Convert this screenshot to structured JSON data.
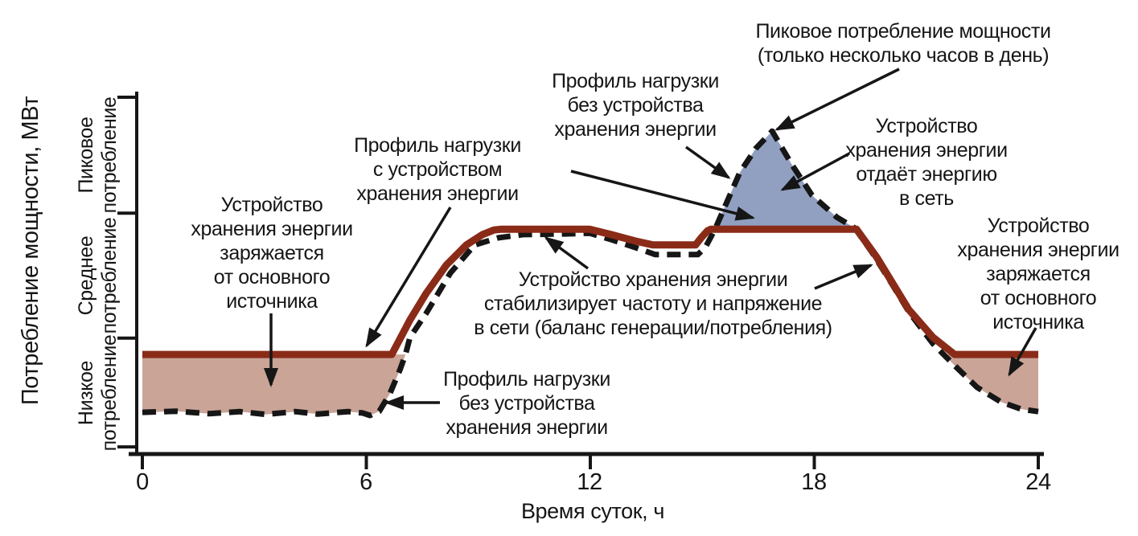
{
  "x_axis": {
    "label": "Время суток, ч",
    "tick_labels": [
      "0",
      "6",
      "12",
      "18",
      "24"
    ]
  },
  "y_axis": {
    "label": "Потребление мощности, МВт",
    "zones": [
      "Пиковое\nпотребление",
      "Среднее\nпотребление",
      "Низкое\nпотребление"
    ]
  },
  "annotations": {
    "peak_demand": "Пиковое потребление мощности\n(только несколько часов в день)",
    "profile_without_top": "Профиль нагрузки\nбез устройства\nхранения энергии",
    "discharge": "Устройство\nхранения энергии\nотдаёт энергию\nв сеть",
    "profile_with": "Профиль нагрузки\nс устройством\nхранения энергии",
    "charge_left": "Устройство\nхранения энергии\nзаряжается\nот основного\nисточника",
    "stabilize": "Устройство хранения энергии\nстабилизирует частоту и напряжение\nв сети (баланс генерации/потребления)",
    "charge_right": "Устройство\nхранения энергии\nзаряжается\nот основного\nисточника",
    "profile_without_bottom": "Профиль нагрузки\nбез устройства\nхранения энергии"
  },
  "chart_data": {
    "type": "line",
    "xlabel": "Время суток, ч",
    "ylabel": "Потребление мощности, МВт",
    "xlim": [
      0,
      24
    ],
    "ylim": [
      0,
      100
    ],
    "x_ticks": [
      0,
      6,
      12,
      18,
      24
    ],
    "y_ticks": [
      100,
      67.5,
      32.5,
      2
    ],
    "zone_bands": [
      {
        "name": "Пиковое потребление",
        "from": 67.5,
        "to": 100
      },
      {
        "name": "Среднее потребление",
        "from": 32.5,
        "to": 67.5
      },
      {
        "name": "Низкое потребление",
        "from": 2,
        "to": 32.5
      }
    ],
    "series": [
      {
        "id": "without",
        "name": "Профиль нагрузки без устройства хранения энергии",
        "style": "dashed-black",
        "points": [
          [
            0,
            11.7
          ],
          [
            0.9,
            12.0
          ],
          [
            1.8,
            11.3
          ],
          [
            2.6,
            11.9
          ],
          [
            3.3,
            11.1
          ],
          [
            4.1,
            11.9
          ],
          [
            4.7,
            11.2
          ],
          [
            5.5,
            11.9
          ],
          [
            5.9,
            11.5
          ],
          [
            6.1,
            10.8
          ],
          [
            6.35,
            12.0
          ],
          [
            6.63,
            16.9
          ],
          [
            6.9,
            23.6
          ],
          [
            7.05,
            27.9
          ],
          [
            7.17,
            32.7
          ],
          [
            7.6,
            39.4
          ],
          [
            8.25,
            50.7
          ],
          [
            8.9,
            58.6
          ],
          [
            9.54,
            60.6
          ],
          [
            10.2,
            61.5
          ],
          [
            11.3,
            61.7
          ],
          [
            11.98,
            61.9
          ],
          [
            12.56,
            60.1
          ],
          [
            13.2,
            57.9
          ],
          [
            13.74,
            55.9
          ],
          [
            14.88,
            55.9
          ],
          [
            15.08,
            57.9
          ],
          [
            15.23,
            60.8
          ],
          [
            15.36,
            63.5
          ],
          [
            16.0,
            78.8
          ],
          [
            16.43,
            85.6
          ],
          [
            16.87,
            90.5
          ],
          [
            17.4,
            81.1
          ],
          [
            17.94,
            72.5
          ],
          [
            18.6,
            66.4
          ],
          [
            19.09,
            63.3
          ],
          [
            19.56,
            56.3
          ],
          [
            20.1,
            47.3
          ],
          [
            20.53,
            39.9
          ],
          [
            21.18,
            30.9
          ],
          [
            21.76,
            24.8
          ],
          [
            22.36,
            18.7
          ],
          [
            23.0,
            14.6
          ],
          [
            23.54,
            12.6
          ],
          [
            24,
            11.9
          ]
        ]
      },
      {
        "id": "with",
        "name": "Профиль нагрузки с устройством хранения энергии",
        "style": "solid-dark-red",
        "points": [
          [
            0,
            27.9
          ],
          [
            6.68,
            27.9
          ],
          [
            7.17,
            37.6
          ],
          [
            7.6,
            45.0
          ],
          [
            8.14,
            52.9
          ],
          [
            8.68,
            58.6
          ],
          [
            9.11,
            61.5
          ],
          [
            9.42,
            62.8
          ],
          [
            9.6,
            63.0
          ],
          [
            11.98,
            63.0
          ],
          [
            12.56,
            61.5
          ],
          [
            13.2,
            59.7
          ],
          [
            13.68,
            58.6
          ],
          [
            14.82,
            58.6
          ],
          [
            14.97,
            60.6
          ],
          [
            15.14,
            62.6
          ],
          [
            15.23,
            63.0
          ],
          [
            19.13,
            63.0
          ],
          [
            19.67,
            55.2
          ],
          [
            20.53,
            40.5
          ],
          [
            21.18,
            32.7
          ],
          [
            21.76,
            27.9
          ],
          [
            24,
            27.9
          ]
        ]
      }
    ],
    "fill_regions": [
      {
        "role": "charge",
        "label": "Устройство хранения энергии заряжается от основного источника",
        "from": 0,
        "to": 7.05,
        "level": 27.9
      },
      {
        "role": "discharge",
        "label": "Устройство хранения энергии отдаёт энергию в сеть",
        "from": 15.36,
        "to": 19.09,
        "level": 63.0
      },
      {
        "role": "charge",
        "label": "Устройство хранения энергии заряжается от основного источника",
        "from": 21.47,
        "to": 24,
        "level": 27.9
      }
    ],
    "colors": {
      "with_storage": "#8a2b18",
      "without_storage": "#161616",
      "charge_fill": "#c9a497",
      "discharge_fill": "#91a0c0",
      "axis": "#161616"
    },
    "legend": "none",
    "grid": false
  }
}
